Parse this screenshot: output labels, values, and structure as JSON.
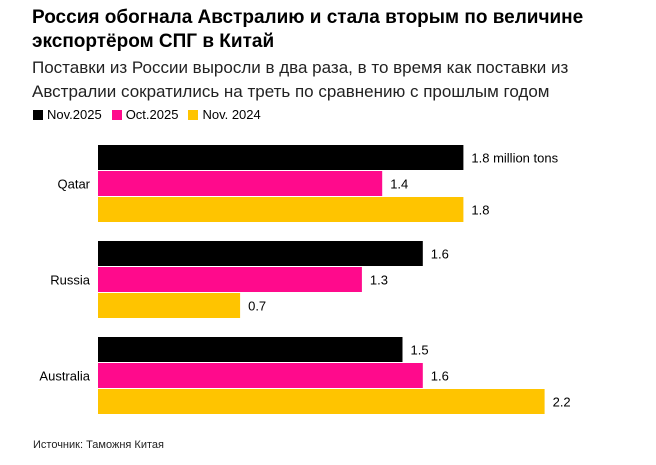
{
  "title": "Россия обогнала Австралию и стала вторым по величине экспортёром СПГ в Китай",
  "subtitle": "Поставки из России выросли в два раза, в то время как поставки из Австралии сократились на треть по сравнению с прошлым годом",
  "source": "Источник: Таможня Китая",
  "chart_data": {
    "type": "bar",
    "orientation": "horizontal",
    "categories": [
      "Qatar",
      "Russia",
      "Australia"
    ],
    "series": [
      {
        "name": "Nov.2025",
        "color": "#000000",
        "values": [
          1.8,
          1.6,
          1.5
        ],
        "labels": [
          "1.8 million tons",
          "1.6",
          "1.5"
        ]
      },
      {
        "name": "Oct.2025",
        "color": "#ff0a8c",
        "values": [
          1.4,
          1.3,
          1.6
        ],
        "labels": [
          "1.4",
          "1.3",
          "1.6"
        ]
      },
      {
        "name": "Nov. 2024",
        "color": "#ffc400",
        "values": [
          1.8,
          0.7,
          2.2
        ],
        "labels": [
          "1.8",
          "0.7",
          "2.2"
        ]
      }
    ],
    "xlim": [
      0,
      2.2
    ],
    "grid": false,
    "legend": "top-left"
  }
}
